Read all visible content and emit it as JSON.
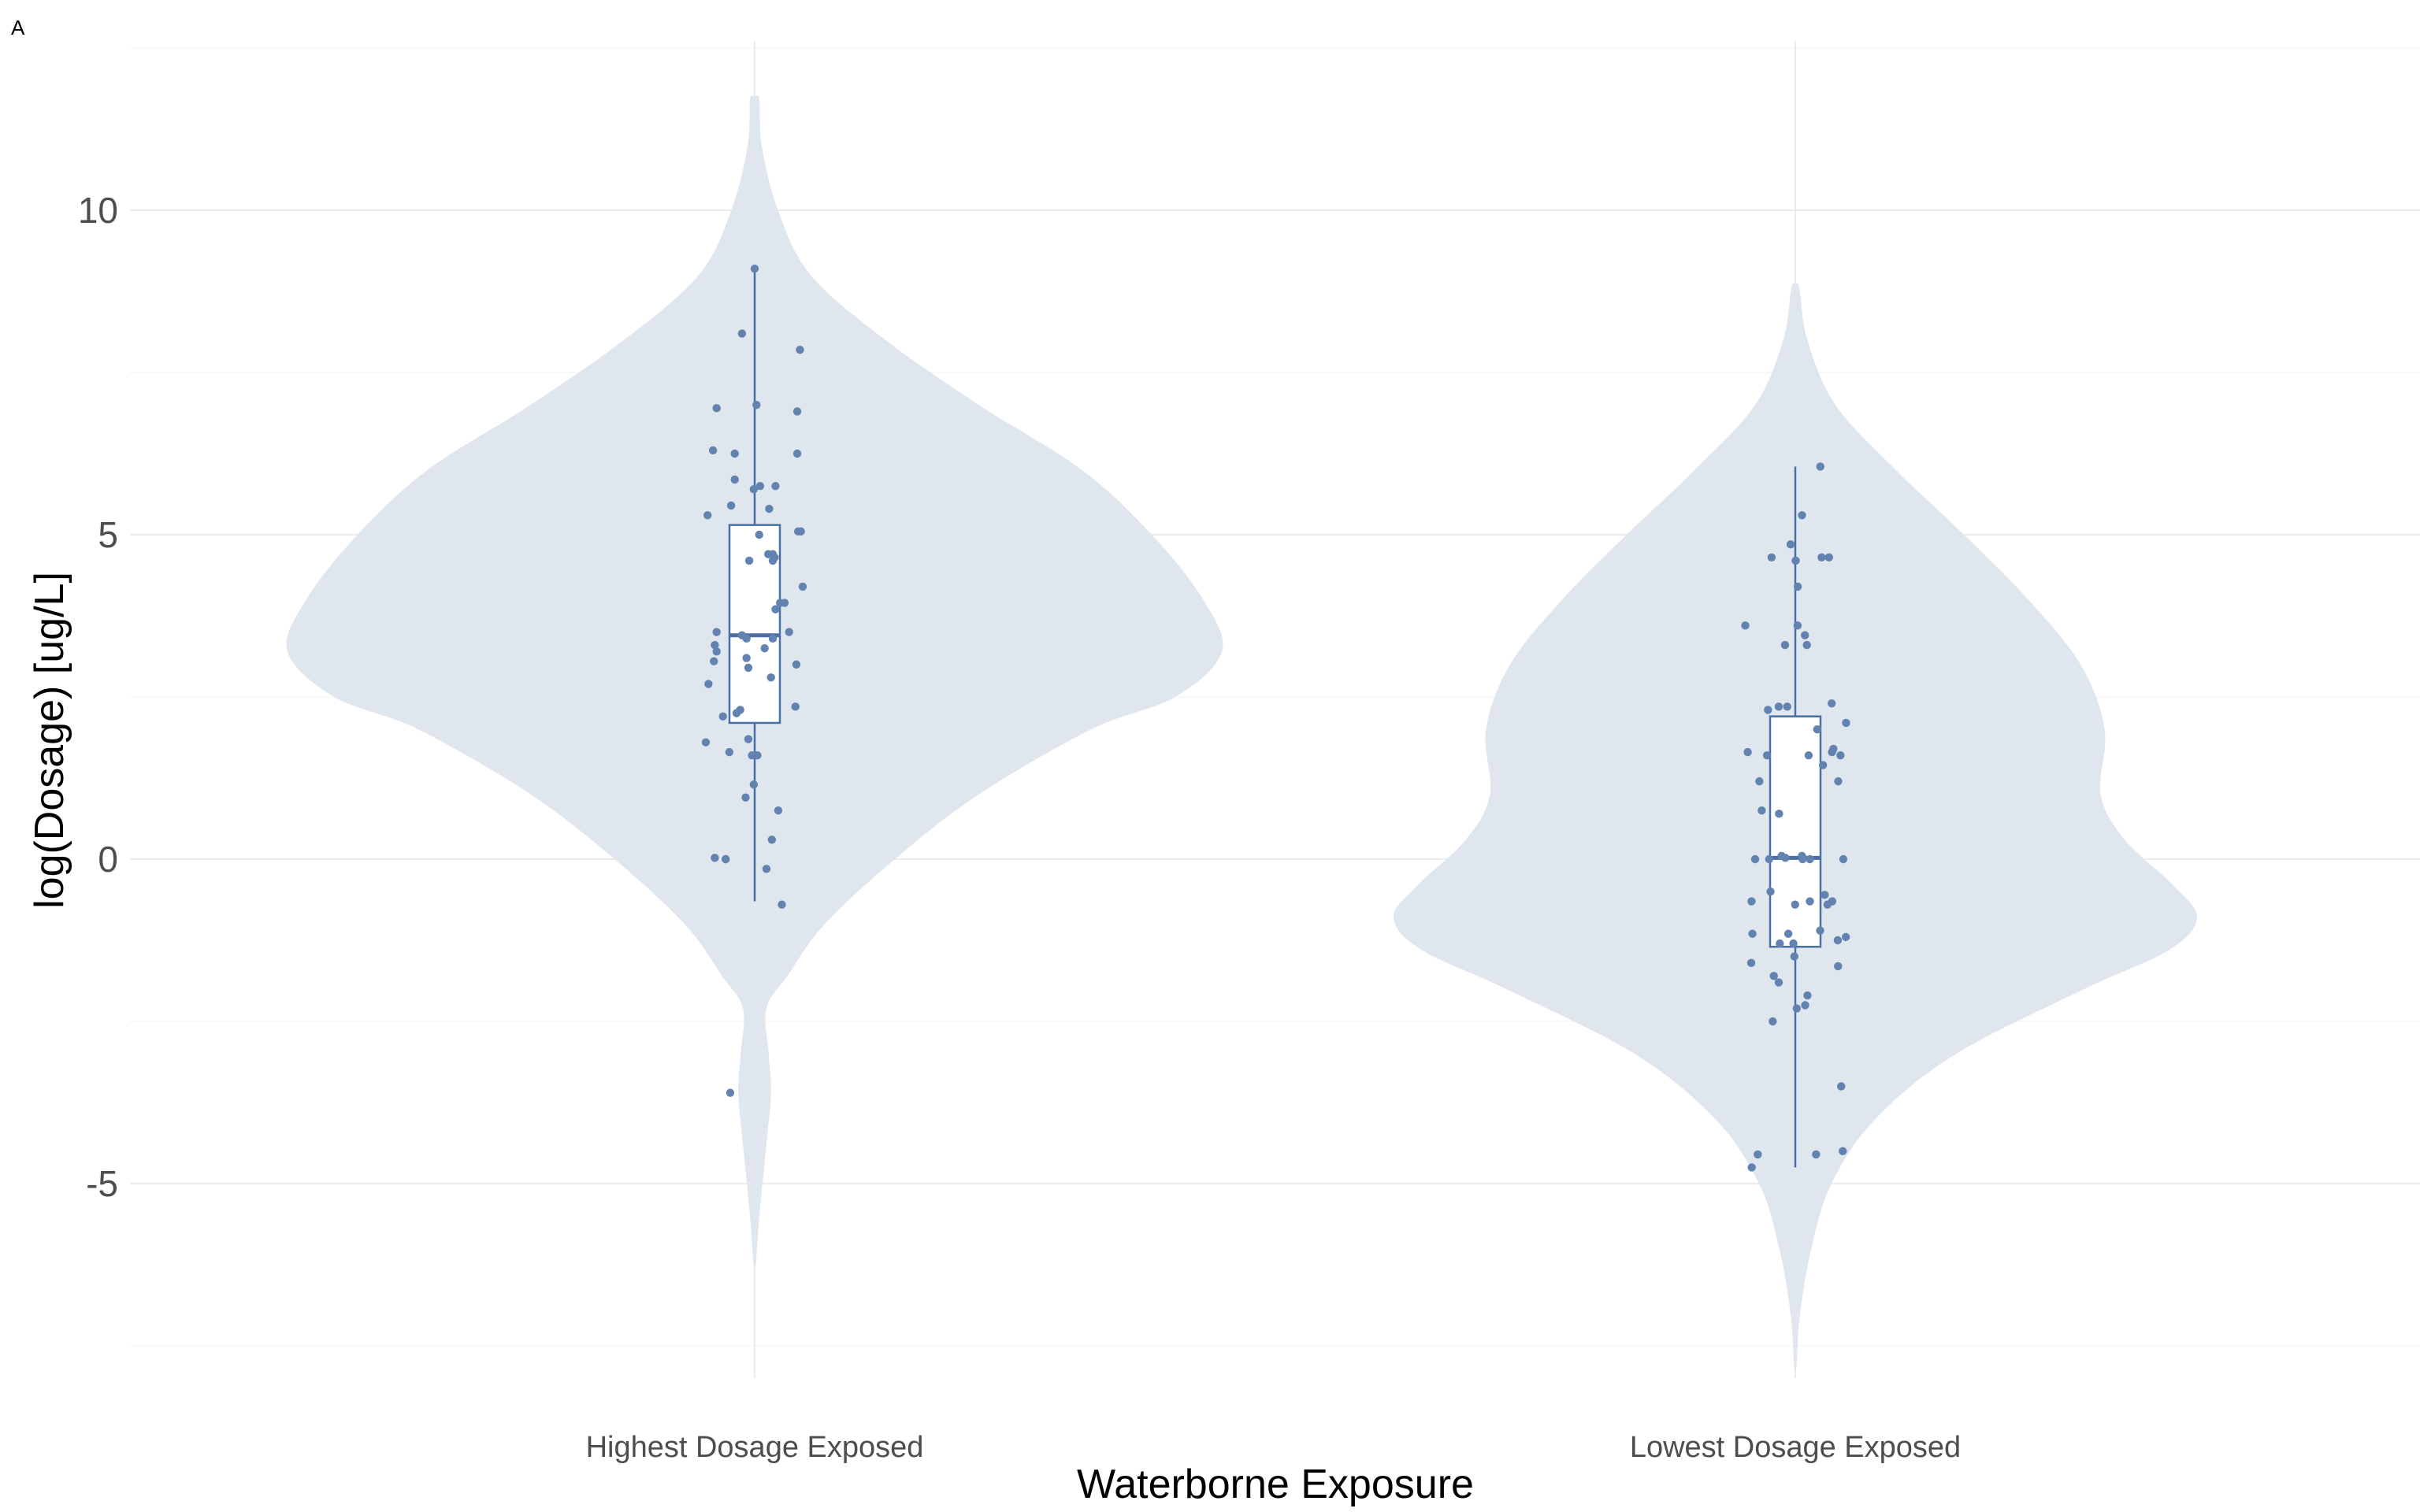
{
  "panel_label": "A",
  "chart_data": {
    "type": "violin",
    "xlabel": "Waterborne Exposure",
    "ylabel": "log(Dosage) [ug/L]",
    "ylim": [
      -8,
      12.6
    ],
    "yticks": [
      -5,
      0,
      5,
      10
    ],
    "ytick_labels": [
      "-5",
      "0",
      "5",
      "10"
    ],
    "grid": true,
    "legend": "none",
    "colors": {
      "violin_fill": "#dfe6ee",
      "box_stroke": "#4a6fa5",
      "point": "#6282b0"
    },
    "groups": [
      {
        "name": "Highest Dosage Exposed",
        "box": {
          "q1": 2.1,
          "median": 3.45,
          "q3": 5.15,
          "whisker_low": -0.65,
          "whisker_high": 9.1
        },
        "density_profile": [
          [
            11.7,
            0.01
          ],
          [
            11.0,
            0.015
          ],
          [
            10.0,
            0.05
          ],
          [
            9.0,
            0.12
          ],
          [
            8.0,
            0.28
          ],
          [
            7.0,
            0.48
          ],
          [
            6.0,
            0.7
          ],
          [
            5.0,
            0.85
          ],
          [
            4.0,
            0.96
          ],
          [
            3.2,
            1.0
          ],
          [
            2.5,
            0.9
          ],
          [
            2.0,
            0.72
          ],
          [
            1.0,
            0.48
          ],
          [
            0.0,
            0.3
          ],
          [
            -1.0,
            0.15
          ],
          [
            -1.8,
            0.07
          ],
          [
            -2.3,
            0.025
          ],
          [
            -3.0,
            0.03
          ],
          [
            -3.6,
            0.035
          ],
          [
            -4.4,
            0.025
          ],
          [
            -5.5,
            0.01
          ],
          [
            -6.2,
            0.003
          ]
        ],
        "points": [
          9.1,
          8.1,
          7.85,
          7.0,
          6.95,
          6.9,
          6.3,
          6.25,
          6.25,
          5.85,
          5.75,
          5.75,
          5.7,
          5.45,
          5.4,
          5.3,
          5.05,
          5.05,
          5.0,
          4.7,
          4.7,
          4.65,
          4.6,
          4.6,
          4.2,
          3.95,
          3.95,
          3.85,
          3.5,
          3.5,
          3.45,
          3.4,
          3.4,
          3.3,
          3.25,
          3.2,
          3.1,
          3.05,
          3.0,
          2.95,
          2.8,
          2.7,
          2.35,
          2.3,
          2.25,
          2.2,
          1.85,
          1.8,
          1.65,
          1.6,
          1.6,
          1.15,
          0.95,
          0.75,
          0.3,
          0.02,
          0.0,
          0.0,
          -0.15,
          -0.7,
          -3.6
        ],
        "jitter": [
          0.0,
          -0.14,
          0.5,
          0.02,
          -0.42,
          0.47,
          -0.46,
          0.47,
          -0.22,
          -0.22,
          0.23,
          0.06,
          -0.01,
          -0.26,
          0.16,
          -0.52,
          0.48,
          0.51,
          0.05,
          0.15,
          0.2,
          0.22,
          0.2,
          -0.06,
          0.53,
          0.28,
          0.33,
          0.23,
          -0.42,
          0.38,
          -0.14,
          -0.09,
          0.2,
          -0.44,
          0.11,
          -0.42,
          -0.09,
          -0.45,
          0.46,
          -0.07,
          0.18,
          -0.51,
          0.45,
          -0.16,
          -0.2,
          -0.35,
          -0.07,
          -0.54,
          -0.28,
          -0.03,
          0.03,
          -0.01,
          -0.1,
          0.26,
          0.19,
          -0.44,
          -0.32,
          -0.32,
          0.13,
          0.3,
          -0.27
        ]
      },
      {
        "name": "Lowest Dosage Exposed",
        "box": {
          "q1": -1.35,
          "median": 0.02,
          "q3": 2.2,
          "whisker_low": -4.75,
          "whisker_high": 6.05
        },
        "density_profile": [
          [
            8.8,
            0.01
          ],
          [
            8.0,
            0.03
          ],
          [
            7.0,
            0.1
          ],
          [
            6.0,
            0.25
          ],
          [
            5.0,
            0.42
          ],
          [
            4.0,
            0.58
          ],
          [
            3.0,
            0.71
          ],
          [
            2.0,
            0.77
          ],
          [
            1.0,
            0.76
          ],
          [
            0.3,
            0.82
          ],
          [
            -0.4,
            0.94
          ],
          [
            -0.9,
            1.0
          ],
          [
            -1.4,
            0.93
          ],
          [
            -2.0,
            0.72
          ],
          [
            -3.0,
            0.4
          ],
          [
            -4.0,
            0.2
          ],
          [
            -5.0,
            0.09
          ],
          [
            -6.0,
            0.04
          ],
          [
            -7.0,
            0.012
          ],
          [
            -7.8,
            0.003
          ]
        ],
        "points": [
          6.05,
          5.3,
          4.85,
          4.65,
          4.65,
          4.65,
          4.6,
          4.2,
          3.6,
          3.6,
          3.45,
          3.3,
          3.3,
          2.4,
          2.35,
          2.35,
          2.3,
          2.1,
          2.0,
          1.7,
          1.65,
          1.65,
          1.6,
          1.6,
          1.6,
          1.45,
          1.2,
          1.2,
          0.75,
          0.7,
          0.05,
          0.05,
          0.02,
          0.0,
          0.0,
          0.0,
          0.0,
          0.0,
          -0.5,
          -0.55,
          -0.65,
          -0.65,
          -0.65,
          -0.7,
          -0.7,
          -1.1,
          -1.15,
          -1.15,
          -1.2,
          -1.25,
          -1.3,
          -1.3,
          -1.5,
          -1.6,
          -1.65,
          -1.8,
          -1.9,
          -2.1,
          -2.25,
          -2.3,
          -2.5,
          -3.5,
          -4.5,
          -4.55,
          -4.55,
          -4.75
        ]
      }
    ]
  },
  "labels": {
    "x_categories": [
      "Highest Dosage Exposed",
      "Lowest Dosage Exposed"
    ]
  }
}
